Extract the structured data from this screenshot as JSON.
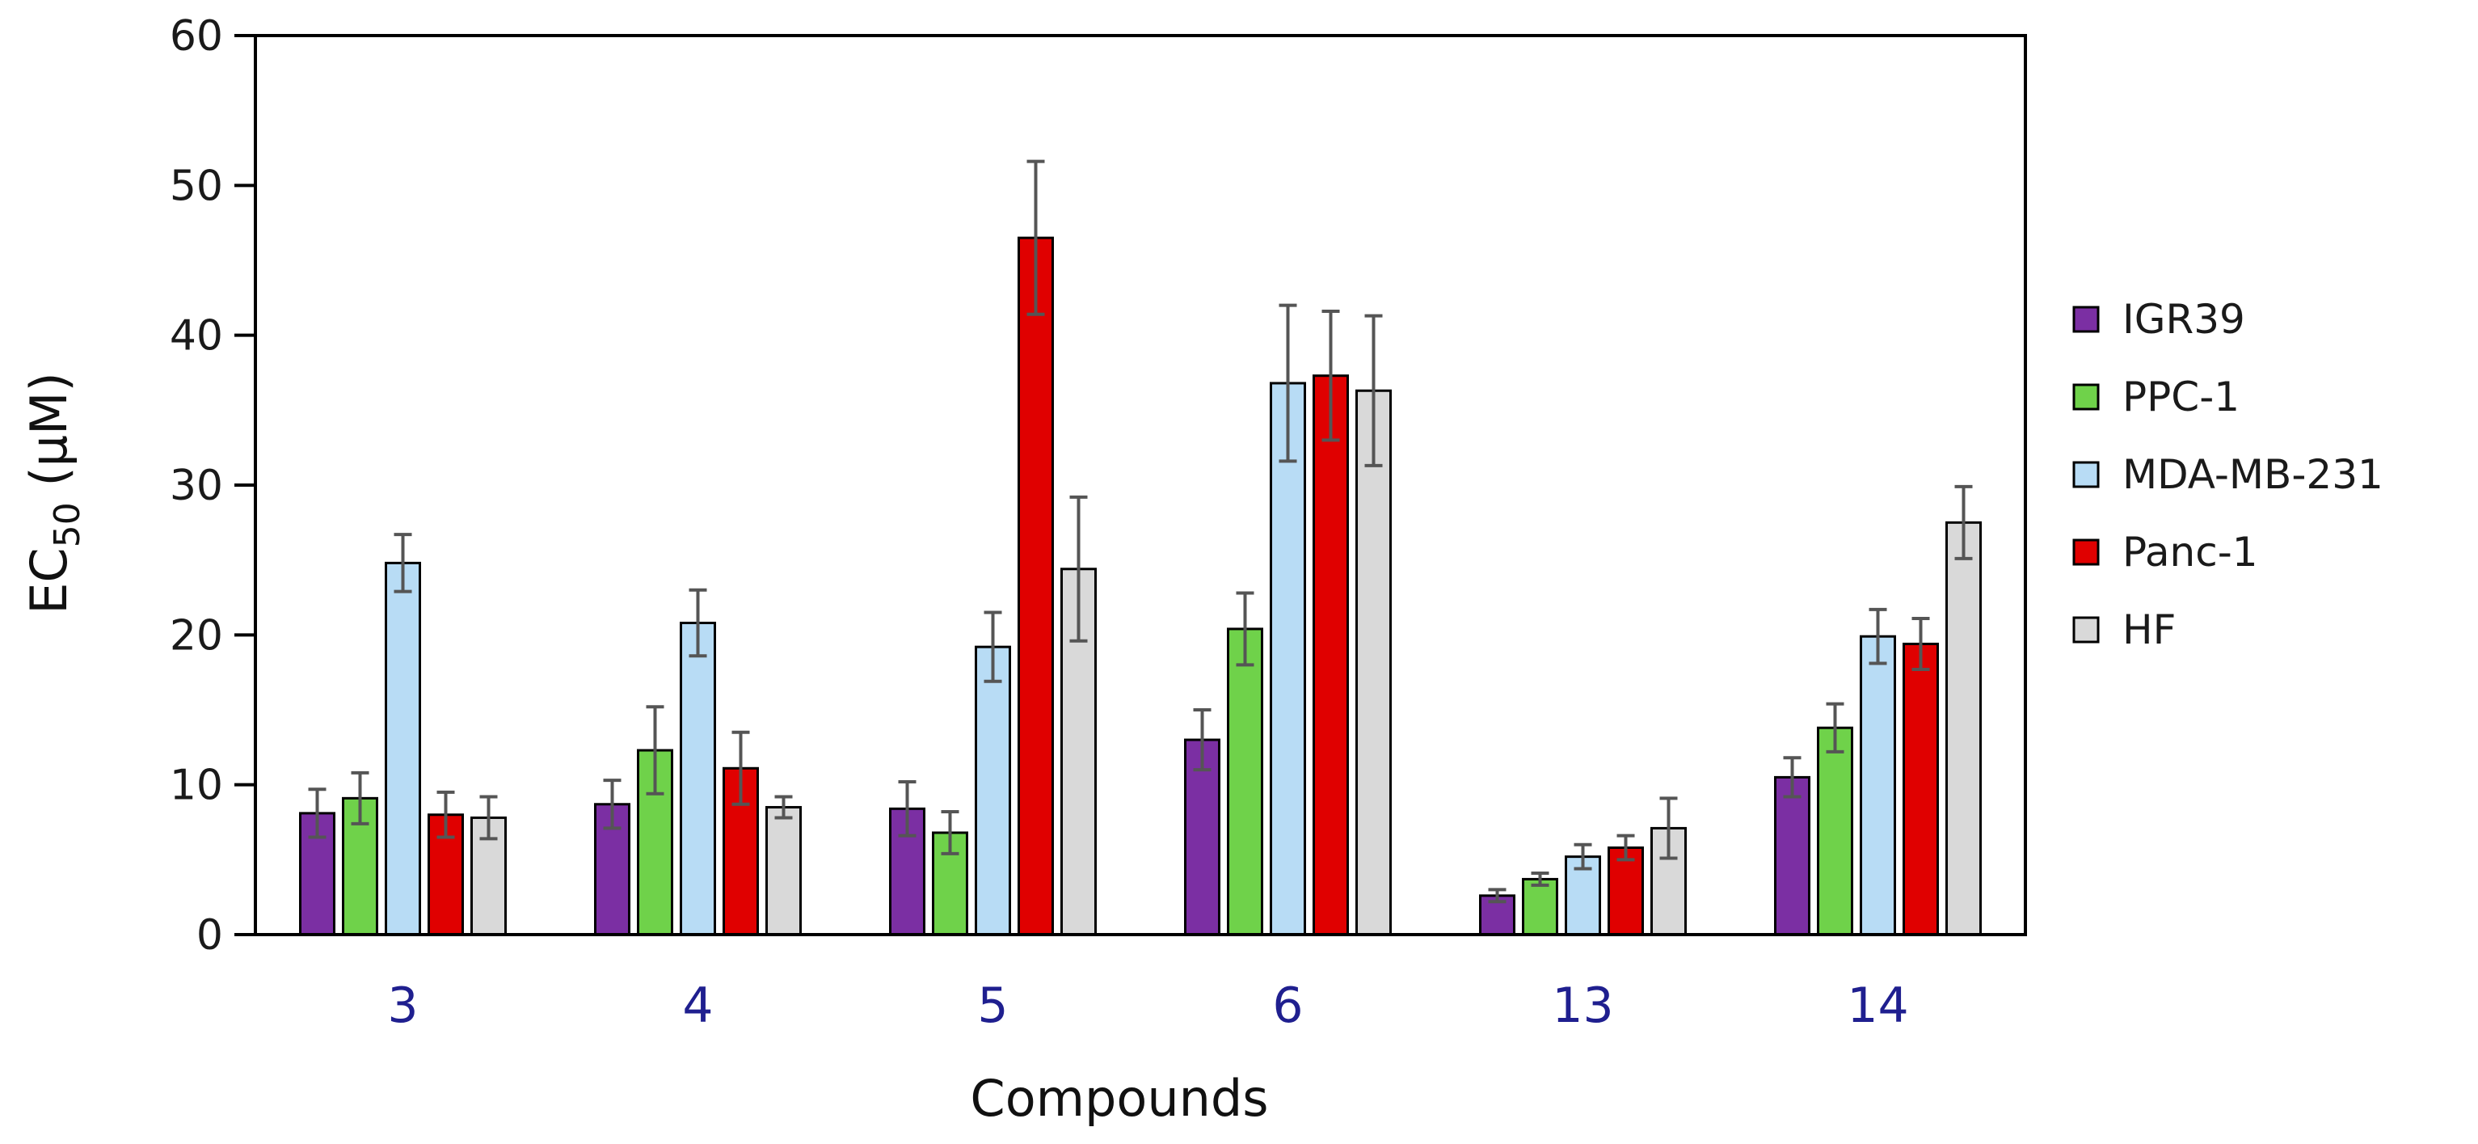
{
  "chart_data": {
    "type": "bar",
    "title": "",
    "xlabel": "Compounds",
    "ylabel_main": "EC",
    "ylabel_sub": "50",
    "ylabel_unit": " (μM)",
    "ylim": [
      0,
      60
    ],
    "yticks": [
      0,
      10,
      20,
      30,
      40,
      50,
      60
    ],
    "categories": [
      "3",
      "4",
      "5",
      "6",
      "13",
      "14"
    ],
    "legend_position": "right",
    "grid": false,
    "series": [
      {
        "name": "IGR39",
        "color": "#7b2fa3",
        "values": [
          8.1,
          8.7,
          8.4,
          13.0,
          2.6,
          10.5
        ],
        "errors": [
          1.6,
          1.6,
          1.8,
          2.0,
          0.4,
          1.3
        ]
      },
      {
        "name": "PPC-1",
        "color": "#6fd24a",
        "values": [
          9.1,
          12.3,
          6.8,
          20.4,
          3.7,
          13.8
        ],
        "errors": [
          1.7,
          2.9,
          1.4,
          2.4,
          0.4,
          1.6
        ]
      },
      {
        "name": "MDA-MB-231",
        "color": "#b8dcf5",
        "values": [
          24.8,
          20.8,
          19.2,
          36.8,
          5.2,
          19.9
        ],
        "errors": [
          1.9,
          2.2,
          2.3,
          5.2,
          0.8,
          1.8
        ]
      },
      {
        "name": "Panc-1",
        "color": "#e00000",
        "values": [
          8.0,
          11.1,
          46.5,
          37.3,
          5.8,
          19.4
        ],
        "errors": [
          1.5,
          2.4,
          5.1,
          4.3,
          0.8,
          1.7
        ]
      },
      {
        "name": "HF",
        "color": "#d9d9d9",
        "values": [
          7.8,
          8.5,
          24.4,
          36.3,
          7.1,
          27.5
        ],
        "errors": [
          1.4,
          0.7,
          4.8,
          5.0,
          2.0,
          2.4
        ]
      }
    ]
  }
}
